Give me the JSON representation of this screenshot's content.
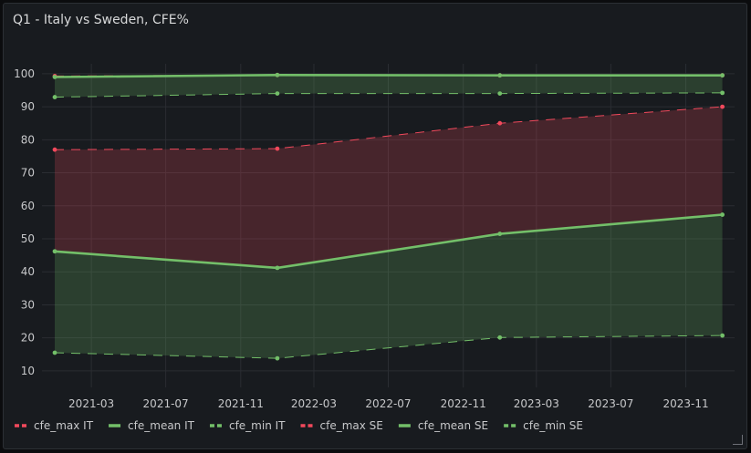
{
  "panel": {
    "title": "Q1 - Italy vs Sweden, CFE%"
  },
  "chart_data": {
    "type": "line",
    "x": [
      "2020-12-31",
      "2021-12-31",
      "2022-12-31",
      "2023-12-31"
    ],
    "xticks": [
      "2021-03",
      "2021-07",
      "2021-11",
      "2022-03",
      "2022-07",
      "2022-11",
      "2023-03",
      "2023-07",
      "2023-11"
    ],
    "yticks": [
      10,
      20,
      30,
      40,
      50,
      60,
      70,
      80,
      90,
      100
    ],
    "ylim": [
      5,
      103
    ],
    "xlim": [
      "2020-12-10",
      "2024-01-20"
    ],
    "grid": true,
    "legend": "bottom",
    "colors": {
      "red": "#f2495c",
      "green": "#73bf69"
    },
    "series": [
      {
        "name": "cfe_max IT",
        "values": [
          77,
          77.3,
          85,
          90
        ],
        "color": "#f2495c",
        "dashed": true,
        "fill_to": "cfe_mean IT"
      },
      {
        "name": "cfe_mean IT",
        "values": [
          46.2,
          41.2,
          51.5,
          57.3
        ],
        "color": "#73bf69",
        "dashed": false,
        "fill_to": "cfe_min IT"
      },
      {
        "name": "cfe_min IT",
        "values": [
          15.5,
          13.8,
          20.1,
          20.7
        ],
        "color": "#73bf69",
        "dashed": true
      },
      {
        "name": "cfe_max SE",
        "values": [
          99.3,
          99.6,
          99.5,
          99.5
        ],
        "color": "#f2495c",
        "dashed": true,
        "fill_to": "cfe_mean SE"
      },
      {
        "name": "cfe_mean SE",
        "values": [
          99,
          99.6,
          99.5,
          99.5
        ],
        "color": "#73bf69",
        "dashed": false,
        "fill_to": "cfe_min SE"
      },
      {
        "name": "cfe_min SE",
        "values": [
          92.9,
          94,
          94,
          94.2
        ],
        "color": "#73bf69",
        "dashed": true
      }
    ]
  }
}
